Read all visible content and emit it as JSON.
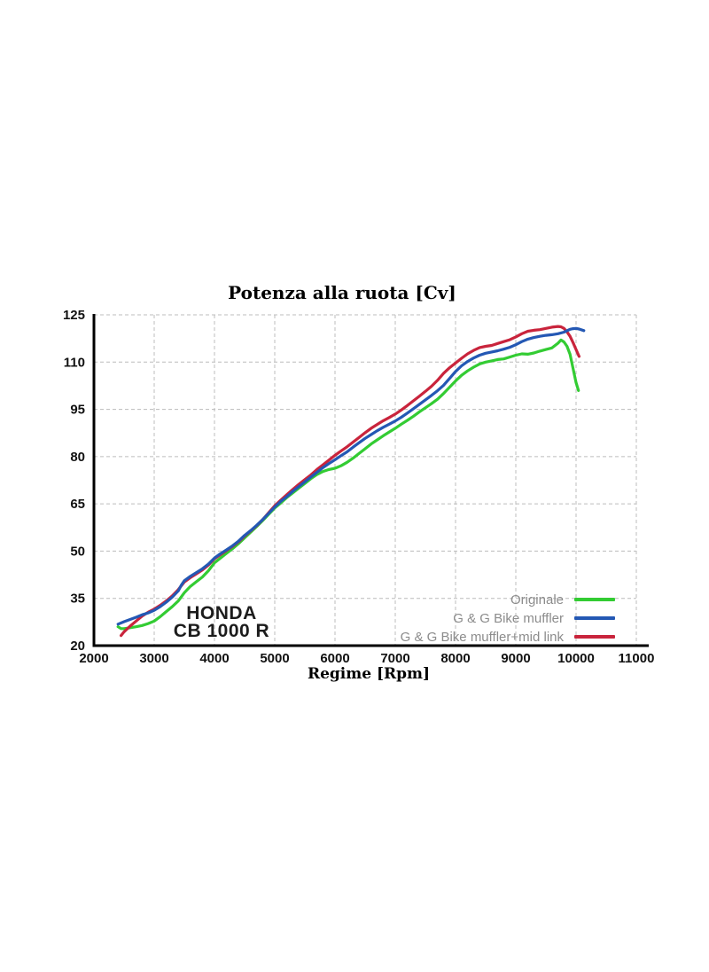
{
  "page": {
    "background": "#ffffff"
  },
  "chart_data": {
    "type": "line",
    "title": "Potenza alla ruota [Cv]",
    "xlabel": "Regime [Rpm]",
    "ylabel": "",
    "xlim": [
      2000,
      11000
    ],
    "ylim": [
      20,
      125
    ],
    "x_ticks": [
      2000,
      3000,
      4000,
      5000,
      6000,
      7000,
      8000,
      9000,
      10000,
      11000
    ],
    "y_ticks": [
      20,
      35,
      50,
      65,
      80,
      95,
      110,
      125
    ],
    "grid": true,
    "legend_position": "bottom-right",
    "annotation": {
      "line1": "HONDA",
      "line2": "CB 1000 R"
    },
    "series": [
      {
        "name": "Originale",
        "color": "#33cc33",
        "points": [
          [
            2400,
            26.0
          ],
          [
            2450,
            25.4
          ],
          [
            2500,
            25.4
          ],
          [
            2600,
            25.7
          ],
          [
            2700,
            26.0
          ],
          [
            2800,
            26.4
          ],
          [
            2900,
            27.0
          ],
          [
            3000,
            27.8
          ],
          [
            3100,
            29.2
          ],
          [
            3200,
            30.8
          ],
          [
            3300,
            32.4
          ],
          [
            3400,
            34.2
          ],
          [
            3500,
            36.8
          ],
          [
            3600,
            38.8
          ],
          [
            3700,
            40.3
          ],
          [
            3800,
            41.8
          ],
          [
            3900,
            43.8
          ],
          [
            4000,
            46.3
          ],
          [
            4100,
            47.8
          ],
          [
            4200,
            49.3
          ],
          [
            4300,
            50.8
          ],
          [
            4400,
            52.4
          ],
          [
            4500,
            54.2
          ],
          [
            4600,
            56.0
          ],
          [
            4700,
            57.8
          ],
          [
            4800,
            59.7
          ],
          [
            4900,
            61.7
          ],
          [
            5000,
            63.7
          ],
          [
            5100,
            65.3
          ],
          [
            5200,
            67.0
          ],
          [
            5300,
            68.5
          ],
          [
            5400,
            70.0
          ],
          [
            5500,
            71.5
          ],
          [
            5600,
            73.0
          ],
          [
            5700,
            74.3
          ],
          [
            5800,
            75.3
          ],
          [
            5900,
            75.9
          ],
          [
            6000,
            76.3
          ],
          [
            6100,
            77.1
          ],
          [
            6200,
            78.2
          ],
          [
            6300,
            79.5
          ],
          [
            6400,
            81.0
          ],
          [
            6500,
            82.5
          ],
          [
            6600,
            84.0
          ],
          [
            6700,
            85.3
          ],
          [
            6800,
            86.6
          ],
          [
            6900,
            87.8
          ],
          [
            7000,
            89.0
          ],
          [
            7100,
            90.3
          ],
          [
            7200,
            91.5
          ],
          [
            7300,
            92.8
          ],
          [
            7400,
            94.2
          ],
          [
            7500,
            95.5
          ],
          [
            7600,
            96.8
          ],
          [
            7700,
            98.2
          ],
          [
            7800,
            100.0
          ],
          [
            7900,
            102.0
          ],
          [
            8000,
            104.0
          ],
          [
            8100,
            105.8
          ],
          [
            8200,
            107.2
          ],
          [
            8300,
            108.4
          ],
          [
            8400,
            109.4
          ],
          [
            8500,
            110.0
          ],
          [
            8600,
            110.4
          ],
          [
            8700,
            110.8
          ],
          [
            8800,
            111.0
          ],
          [
            8900,
            111.6
          ],
          [
            9000,
            112.2
          ],
          [
            9100,
            112.6
          ],
          [
            9200,
            112.5
          ],
          [
            9300,
            112.9
          ],
          [
            9400,
            113.5
          ],
          [
            9500,
            114.0
          ],
          [
            9600,
            114.5
          ],
          [
            9700,
            116.0
          ],
          [
            9750,
            117.0
          ],
          [
            9800,
            116.4
          ],
          [
            9850,
            115.0
          ],
          [
            9900,
            112.5
          ],
          [
            9950,
            108.0
          ],
          [
            10000,
            103.5
          ],
          [
            10040,
            101.0
          ]
        ]
      },
      {
        "name": "G & G Bike muffler",
        "color": "#2458b4",
        "points": [
          [
            2400,
            26.8
          ],
          [
            2500,
            27.6
          ],
          [
            2600,
            28.3
          ],
          [
            2700,
            29.0
          ],
          [
            2800,
            29.8
          ],
          [
            2900,
            30.4
          ],
          [
            3000,
            31.2
          ],
          [
            3100,
            32.4
          ],
          [
            3200,
            33.8
          ],
          [
            3300,
            35.4
          ],
          [
            3400,
            37.4
          ],
          [
            3450,
            39.2
          ],
          [
            3500,
            40.6
          ],
          [
            3600,
            42.0
          ],
          [
            3700,
            43.2
          ],
          [
            3800,
            44.4
          ],
          [
            3900,
            45.9
          ],
          [
            4000,
            47.8
          ],
          [
            4100,
            49.2
          ],
          [
            4200,
            50.4
          ],
          [
            4300,
            51.7
          ],
          [
            4400,
            53.2
          ],
          [
            4500,
            55.0
          ],
          [
            4600,
            56.5
          ],
          [
            4700,
            58.2
          ],
          [
            4800,
            60.0
          ],
          [
            4900,
            62.0
          ],
          [
            5000,
            64.0
          ],
          [
            5100,
            65.8
          ],
          [
            5200,
            67.3
          ],
          [
            5300,
            69.0
          ],
          [
            5400,
            70.5
          ],
          [
            5500,
            72.0
          ],
          [
            5600,
            73.5
          ],
          [
            5700,
            75.0
          ],
          [
            5800,
            76.5
          ],
          [
            5900,
            77.8
          ],
          [
            6000,
            79.0
          ],
          [
            6100,
            80.3
          ],
          [
            6200,
            81.5
          ],
          [
            6300,
            83.0
          ],
          [
            6400,
            84.4
          ],
          [
            6500,
            85.8
          ],
          [
            6600,
            87.0
          ],
          [
            6700,
            88.2
          ],
          [
            6800,
            89.3
          ],
          [
            6900,
            90.3
          ],
          [
            7000,
            91.3
          ],
          [
            7100,
            92.5
          ],
          [
            7200,
            93.8
          ],
          [
            7300,
            95.2
          ],
          [
            7400,
            96.6
          ],
          [
            7500,
            98.0
          ],
          [
            7600,
            99.4
          ],
          [
            7700,
            100.9
          ],
          [
            7800,
            102.6
          ],
          [
            7900,
            104.8
          ],
          [
            8000,
            107.0
          ],
          [
            8100,
            108.8
          ],
          [
            8200,
            110.2
          ],
          [
            8300,
            111.3
          ],
          [
            8400,
            112.2
          ],
          [
            8500,
            112.8
          ],
          [
            8600,
            113.2
          ],
          [
            8700,
            113.6
          ],
          [
            8800,
            114.1
          ],
          [
            8900,
            114.7
          ],
          [
            9000,
            115.5
          ],
          [
            9100,
            116.5
          ],
          [
            9200,
            117.3
          ],
          [
            9300,
            117.8
          ],
          [
            9400,
            118.2
          ],
          [
            9500,
            118.5
          ],
          [
            9600,
            118.7
          ],
          [
            9700,
            119.0
          ],
          [
            9800,
            119.5
          ],
          [
            9900,
            120.4
          ],
          [
            9950,
            120.6
          ],
          [
            10000,
            120.7
          ],
          [
            10050,
            120.5
          ],
          [
            10130,
            120.0
          ]
        ]
      },
      {
        "name": "G & G Bike muffler+mid link",
        "color": "#c9243c",
        "points": [
          [
            2450,
            23.2
          ],
          [
            2500,
            24.4
          ],
          [
            2600,
            26.2
          ],
          [
            2700,
            27.8
          ],
          [
            2800,
            29.4
          ],
          [
            2900,
            30.6
          ],
          [
            3000,
            31.6
          ],
          [
            3100,
            32.8
          ],
          [
            3200,
            34.2
          ],
          [
            3300,
            35.8
          ],
          [
            3400,
            37.8
          ],
          [
            3500,
            40.2
          ],
          [
            3600,
            41.6
          ],
          [
            3700,
            42.8
          ],
          [
            3800,
            44.0
          ],
          [
            3900,
            45.6
          ],
          [
            4000,
            47.6
          ],
          [
            4100,
            48.9
          ],
          [
            4200,
            50.2
          ],
          [
            4300,
            51.5
          ],
          [
            4400,
            53.0
          ],
          [
            4500,
            54.8
          ],
          [
            4600,
            56.4
          ],
          [
            4700,
            58.1
          ],
          [
            4800,
            60.0
          ],
          [
            4900,
            62.2
          ],
          [
            5000,
            64.4
          ],
          [
            5100,
            66.2
          ],
          [
            5200,
            67.9
          ],
          [
            5300,
            69.6
          ],
          [
            5400,
            71.2
          ],
          [
            5500,
            72.7
          ],
          [
            5600,
            74.2
          ],
          [
            5700,
            75.9
          ],
          [
            5800,
            77.4
          ],
          [
            5900,
            78.9
          ],
          [
            6000,
            80.4
          ],
          [
            6100,
            81.8
          ],
          [
            6200,
            83.1
          ],
          [
            6300,
            84.6
          ],
          [
            6400,
            86.1
          ],
          [
            6500,
            87.6
          ],
          [
            6600,
            89.0
          ],
          [
            6700,
            90.2
          ],
          [
            6800,
            91.4
          ],
          [
            6900,
            92.4
          ],
          [
            7000,
            93.5
          ],
          [
            7100,
            94.8
          ],
          [
            7200,
            96.2
          ],
          [
            7300,
            97.7
          ],
          [
            7400,
            99.2
          ],
          [
            7500,
            100.7
          ],
          [
            7600,
            102.3
          ],
          [
            7700,
            104.2
          ],
          [
            7800,
            106.4
          ],
          [
            7900,
            108.2
          ],
          [
            8000,
            109.7
          ],
          [
            8100,
            111.2
          ],
          [
            8200,
            112.6
          ],
          [
            8300,
            113.7
          ],
          [
            8400,
            114.6
          ],
          [
            8500,
            115.0
          ],
          [
            8600,
            115.3
          ],
          [
            8700,
            115.9
          ],
          [
            8800,
            116.5
          ],
          [
            8900,
            117.1
          ],
          [
            9000,
            118.0
          ],
          [
            9100,
            119.0
          ],
          [
            9200,
            119.8
          ],
          [
            9300,
            120.1
          ],
          [
            9400,
            120.3
          ],
          [
            9500,
            120.7
          ],
          [
            9600,
            121.1
          ],
          [
            9700,
            121.3
          ],
          [
            9750,
            121.2
          ],
          [
            9800,
            120.7
          ],
          [
            9850,
            119.6
          ],
          [
            9900,
            118.2
          ],
          [
            9950,
            116.2
          ],
          [
            10000,
            114.0
          ],
          [
            10050,
            111.8
          ]
        ]
      }
    ]
  },
  "colors": {
    "grid": "#bcbcbc",
    "axis": "#000000",
    "tick_label": "#111111",
    "legend_text": "#8c8c8c",
    "annotation": "#1c1c1c"
  }
}
